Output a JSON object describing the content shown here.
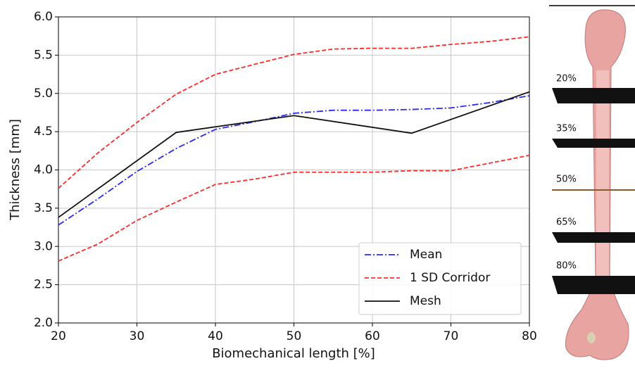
{
  "chart_data": {
    "type": "line",
    "xlabel": "Biomechanical length [%]",
    "ylabel": "Thickness [mm]",
    "xlim": [
      20,
      80
    ],
    "ylim": [
      2.0,
      6.0
    ],
    "xticks": [
      20,
      30,
      40,
      50,
      60,
      70,
      80
    ],
    "yticks": [
      {
        "value": 2.0,
        "label": "2.0"
      },
      {
        "value": 2.5,
        "label": "2.5"
      },
      {
        "value": 3.0,
        "label": "3.0"
      },
      {
        "value": 3.5,
        "label": "3.5"
      },
      {
        "value": 4.0,
        "label": "4.0"
      },
      {
        "value": 4.5,
        "label": "4.5"
      },
      {
        "value": 5.0,
        "label": "5.0"
      },
      {
        "value": 5.5,
        "label": "5.5"
      },
      {
        "value": 6.0,
        "label": "6.0"
      }
    ],
    "grid": true,
    "legend": "lower right",
    "series": [
      {
        "name": "Mean",
        "color": "#2a2af5",
        "dash": "dashdot",
        "x": [
          20,
          25,
          30,
          35,
          40,
          45,
          50,
          55,
          60,
          65,
          70,
          75,
          80
        ],
        "values": [
          3.28,
          3.62,
          3.98,
          4.28,
          4.53,
          4.63,
          4.74,
          4.78,
          4.78,
          4.79,
          4.81,
          4.88,
          4.97
        ]
      },
      {
        "name": "1 SD Corridor",
        "color": "#ff2a2a",
        "dash": "dashed",
        "x": [
          20,
          25,
          30,
          35,
          40,
          45,
          50,
          55,
          60,
          65,
          70,
          75,
          80
        ],
        "values": [
          3.76,
          4.22,
          4.62,
          4.99,
          5.25,
          5.38,
          5.51,
          5.58,
          5.59,
          5.59,
          5.64,
          5.68,
          5.74
        ],
        "lower": [
          2.81,
          3.03,
          3.34,
          3.58,
          3.81,
          3.88,
          3.97,
          3.97,
          3.97,
          3.99,
          3.99,
          4.09,
          4.19
        ]
      },
      {
        "name": "Mesh",
        "color": "#111111",
        "dash": "solid",
        "x": [
          20,
          35,
          50,
          65,
          80
        ],
        "values": [
          3.38,
          4.49,
          4.71,
          4.48,
          5.02
        ]
      }
    ]
  },
  "image_labels": [
    "20%",
    "35%",
    "50%",
    "65%",
    "80%"
  ]
}
